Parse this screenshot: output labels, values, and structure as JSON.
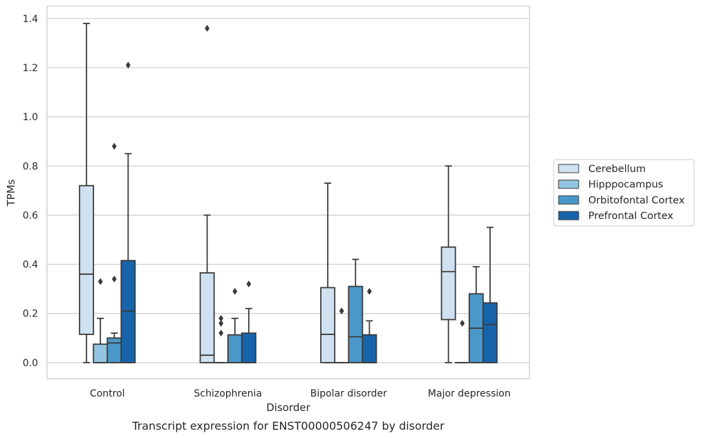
{
  "caption": "Transcript expression for ENST00000506247 by disorder",
  "chart_data": {
    "type": "box",
    "title": "",
    "xlabel": "Disorder",
    "ylabel": "TPMs",
    "ylim": [
      -0.065,
      1.45
    ],
    "yticks": [
      0.0,
      0.2,
      0.4,
      0.6,
      0.8,
      1.0,
      1.2,
      1.4
    ],
    "ytick_labels": [
      "0.0",
      "0.2",
      "0.4",
      "0.6",
      "0.8",
      "1.0",
      "1.2",
      "1.4"
    ],
    "grid": "horizontal",
    "legend_position": "right",
    "categories": [
      "Control",
      "Schizophrenia",
      "Bipolar disorder",
      "Major depression"
    ],
    "series": [
      {
        "name": "Cerebellum",
        "color": "#d0e1f2",
        "boxes": [
          {
            "whisker_low": 0.0,
            "q1": 0.115,
            "median": 0.36,
            "q3": 0.72,
            "whisker_high": 1.38,
            "outliers": []
          },
          {
            "whisker_low": 0.0,
            "q1": 0.0,
            "median": 0.03,
            "q3": 0.365,
            "whisker_high": 0.6,
            "outliers": [
              1.36
            ]
          },
          {
            "whisker_low": 0.0,
            "q1": 0.0,
            "median": 0.115,
            "q3": 0.305,
            "whisker_high": 0.73,
            "outliers": []
          },
          {
            "whisker_low": 0.0,
            "q1": 0.175,
            "median": 0.37,
            "q3": 0.47,
            "whisker_high": 0.8,
            "outliers": []
          }
        ]
      },
      {
        "name": "Hipppocampus",
        "color": "#94c4df",
        "boxes": [
          {
            "whisker_low": 0.0,
            "q1": 0.0,
            "median": 0.0,
            "q3": 0.075,
            "whisker_high": 0.18,
            "outliers": [
              0.33
            ]
          },
          {
            "whisker_low": 0.0,
            "q1": 0.0,
            "median": 0.0,
            "q3": 0.0,
            "whisker_high": 0.0,
            "outliers": [
              0.12,
              0.16,
              0.18
            ]
          },
          {
            "whisker_low": 0.0,
            "q1": 0.0,
            "median": 0.0,
            "q3": 0.0,
            "whisker_high": 0.0,
            "outliers": [
              0.21
            ]
          },
          {
            "whisker_low": 0.0,
            "q1": 0.0,
            "median": 0.0,
            "q3": 0.0,
            "whisker_high": 0.0,
            "outliers": [
              0.16
            ]
          }
        ]
      },
      {
        "name": "Orbitofontal Cortex",
        "color": "#4a98c9",
        "boxes": [
          {
            "whisker_low": 0.0,
            "q1": 0.0,
            "median": 0.08,
            "q3": 0.1,
            "whisker_high": 0.12,
            "outliers": [
              0.34,
              0.88
            ]
          },
          {
            "whisker_low": 0.0,
            "q1": 0.0,
            "median": 0.0,
            "q3": 0.113,
            "whisker_high": 0.18,
            "outliers": [
              0.29
            ]
          },
          {
            "whisker_low": 0.0,
            "q1": 0.0,
            "median": 0.105,
            "q3": 0.31,
            "whisker_high": 0.42,
            "outliers": []
          },
          {
            "whisker_low": 0.0,
            "q1": 0.0,
            "median": 0.14,
            "q3": 0.28,
            "whisker_high": 0.39,
            "outliers": []
          }
        ]
      },
      {
        "name": "Prefrontal Cortex",
        "color": "#1764ab",
        "boxes": [
          {
            "whisker_low": 0.0,
            "q1": 0.0,
            "median": 0.21,
            "q3": 0.415,
            "whisker_high": 0.85,
            "outliers": [
              1.21
            ]
          },
          {
            "whisker_low": 0.0,
            "q1": 0.0,
            "median": 0.0,
            "q3": 0.12,
            "whisker_high": 0.22,
            "outliers": [
              0.32
            ]
          },
          {
            "whisker_low": 0.0,
            "q1": 0.0,
            "median": 0.0,
            "q3": 0.113,
            "whisker_high": 0.17,
            "outliers": [
              0.29
            ]
          },
          {
            "whisker_low": 0.0,
            "q1": 0.0,
            "median": 0.155,
            "q3": 0.243,
            "whisker_high": 0.55,
            "outliers": []
          }
        ]
      }
    ]
  }
}
